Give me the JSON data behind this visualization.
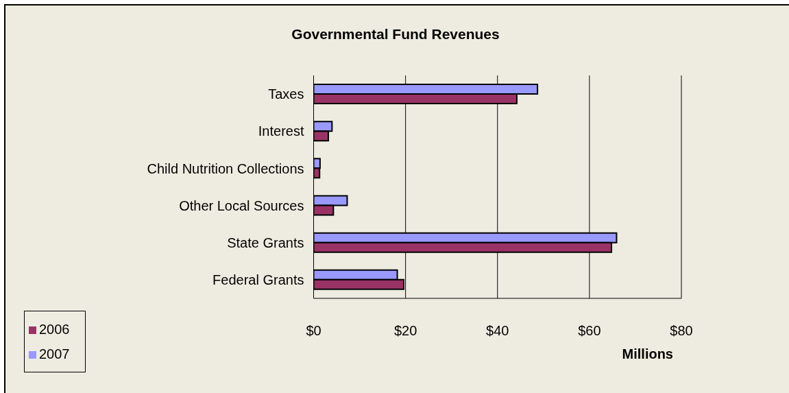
{
  "chart_data": {
    "type": "bar",
    "orientation": "horizontal",
    "title": "Governmental Fund Revenues",
    "xlabel": "Millions",
    "categories": [
      "Taxes",
      "Interest",
      "Child Nutrition Collections",
      "Other Local Sources",
      "State Grants",
      "Federal Grants"
    ],
    "series": [
      {
        "name": "2007",
        "color": "#9999ff",
        "values": [
          48.7,
          4.0,
          1.4,
          7.3,
          65.9,
          18.2
        ]
      },
      {
        "name": "2006",
        "color": "#993366",
        "values": [
          44.2,
          3.2,
          1.3,
          4.3,
          64.8,
          19.6
        ]
      }
    ],
    "xlim": [
      0,
      80
    ],
    "xticks": [
      {
        "value": 0,
        "label": "$0"
      },
      {
        "value": 20,
        "label": "$20"
      },
      {
        "value": 40,
        "label": "$40"
      },
      {
        "value": 60,
        "label": "$60"
      },
      {
        "value": 80,
        "label": "$80"
      }
    ],
    "grid": "x",
    "legend": "bottom left"
  }
}
